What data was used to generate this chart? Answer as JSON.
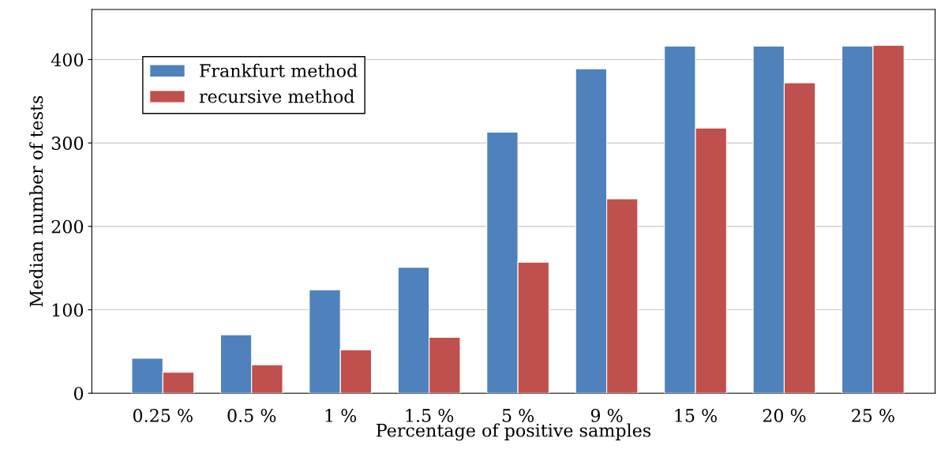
{
  "chart_data": {
    "type": "bar",
    "xlabel": "Percentage of positive samples",
    "ylabel": "Median number of tests",
    "categories": [
      "0.25 %",
      "0.5 %",
      "1 %",
      "1.5 %",
      "5 %",
      "9 %",
      "15 %",
      "20 %",
      "25 %"
    ],
    "series": [
      {
        "name": "Frankfurt method",
        "color": "#4f81bd",
        "values": [
          42,
          70,
          124,
          151,
          313,
          389,
          416,
          416,
          416
        ]
      },
      {
        "name": "recursive method",
        "color": "#c0504d",
        "values": [
          25,
          34,
          52,
          67,
          157,
          233,
          318,
          372,
          417
        ]
      }
    ],
    "ylim": [
      0,
      460
    ],
    "yticks": [
      0,
      100,
      200,
      300,
      400
    ],
    "grid": "y",
    "legend": "top left"
  }
}
